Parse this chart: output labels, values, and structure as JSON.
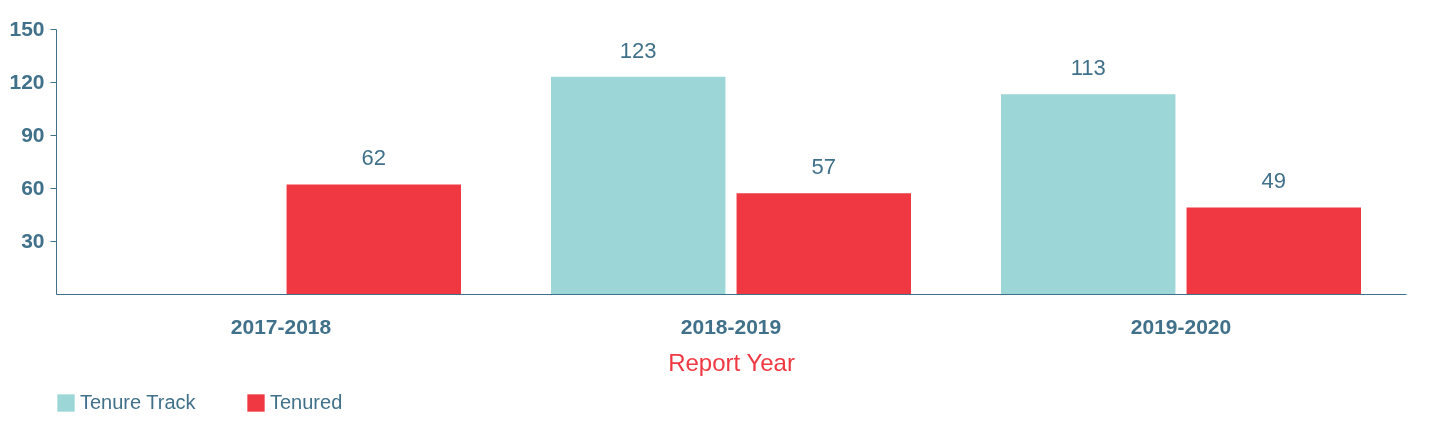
{
  "chart_data": {
    "type": "bar",
    "xlabel": "Report Year",
    "categories": [
      "2017-2018",
      "2018-2019",
      "2019-2020"
    ],
    "series": [
      {
        "name": "Tenure Track",
        "color": "#9dd6d6",
        "values": [
          null,
          123,
          113
        ]
      },
      {
        "name": "Tenured",
        "color": "#ef3842",
        "values": [
          62,
          57,
          49
        ]
      }
    ],
    "ylim": [
      0,
      150
    ],
    "yticks": [
      30,
      60,
      90,
      120,
      150
    ],
    "data_labels": true,
    "grid": false,
    "legend": "bottom"
  }
}
